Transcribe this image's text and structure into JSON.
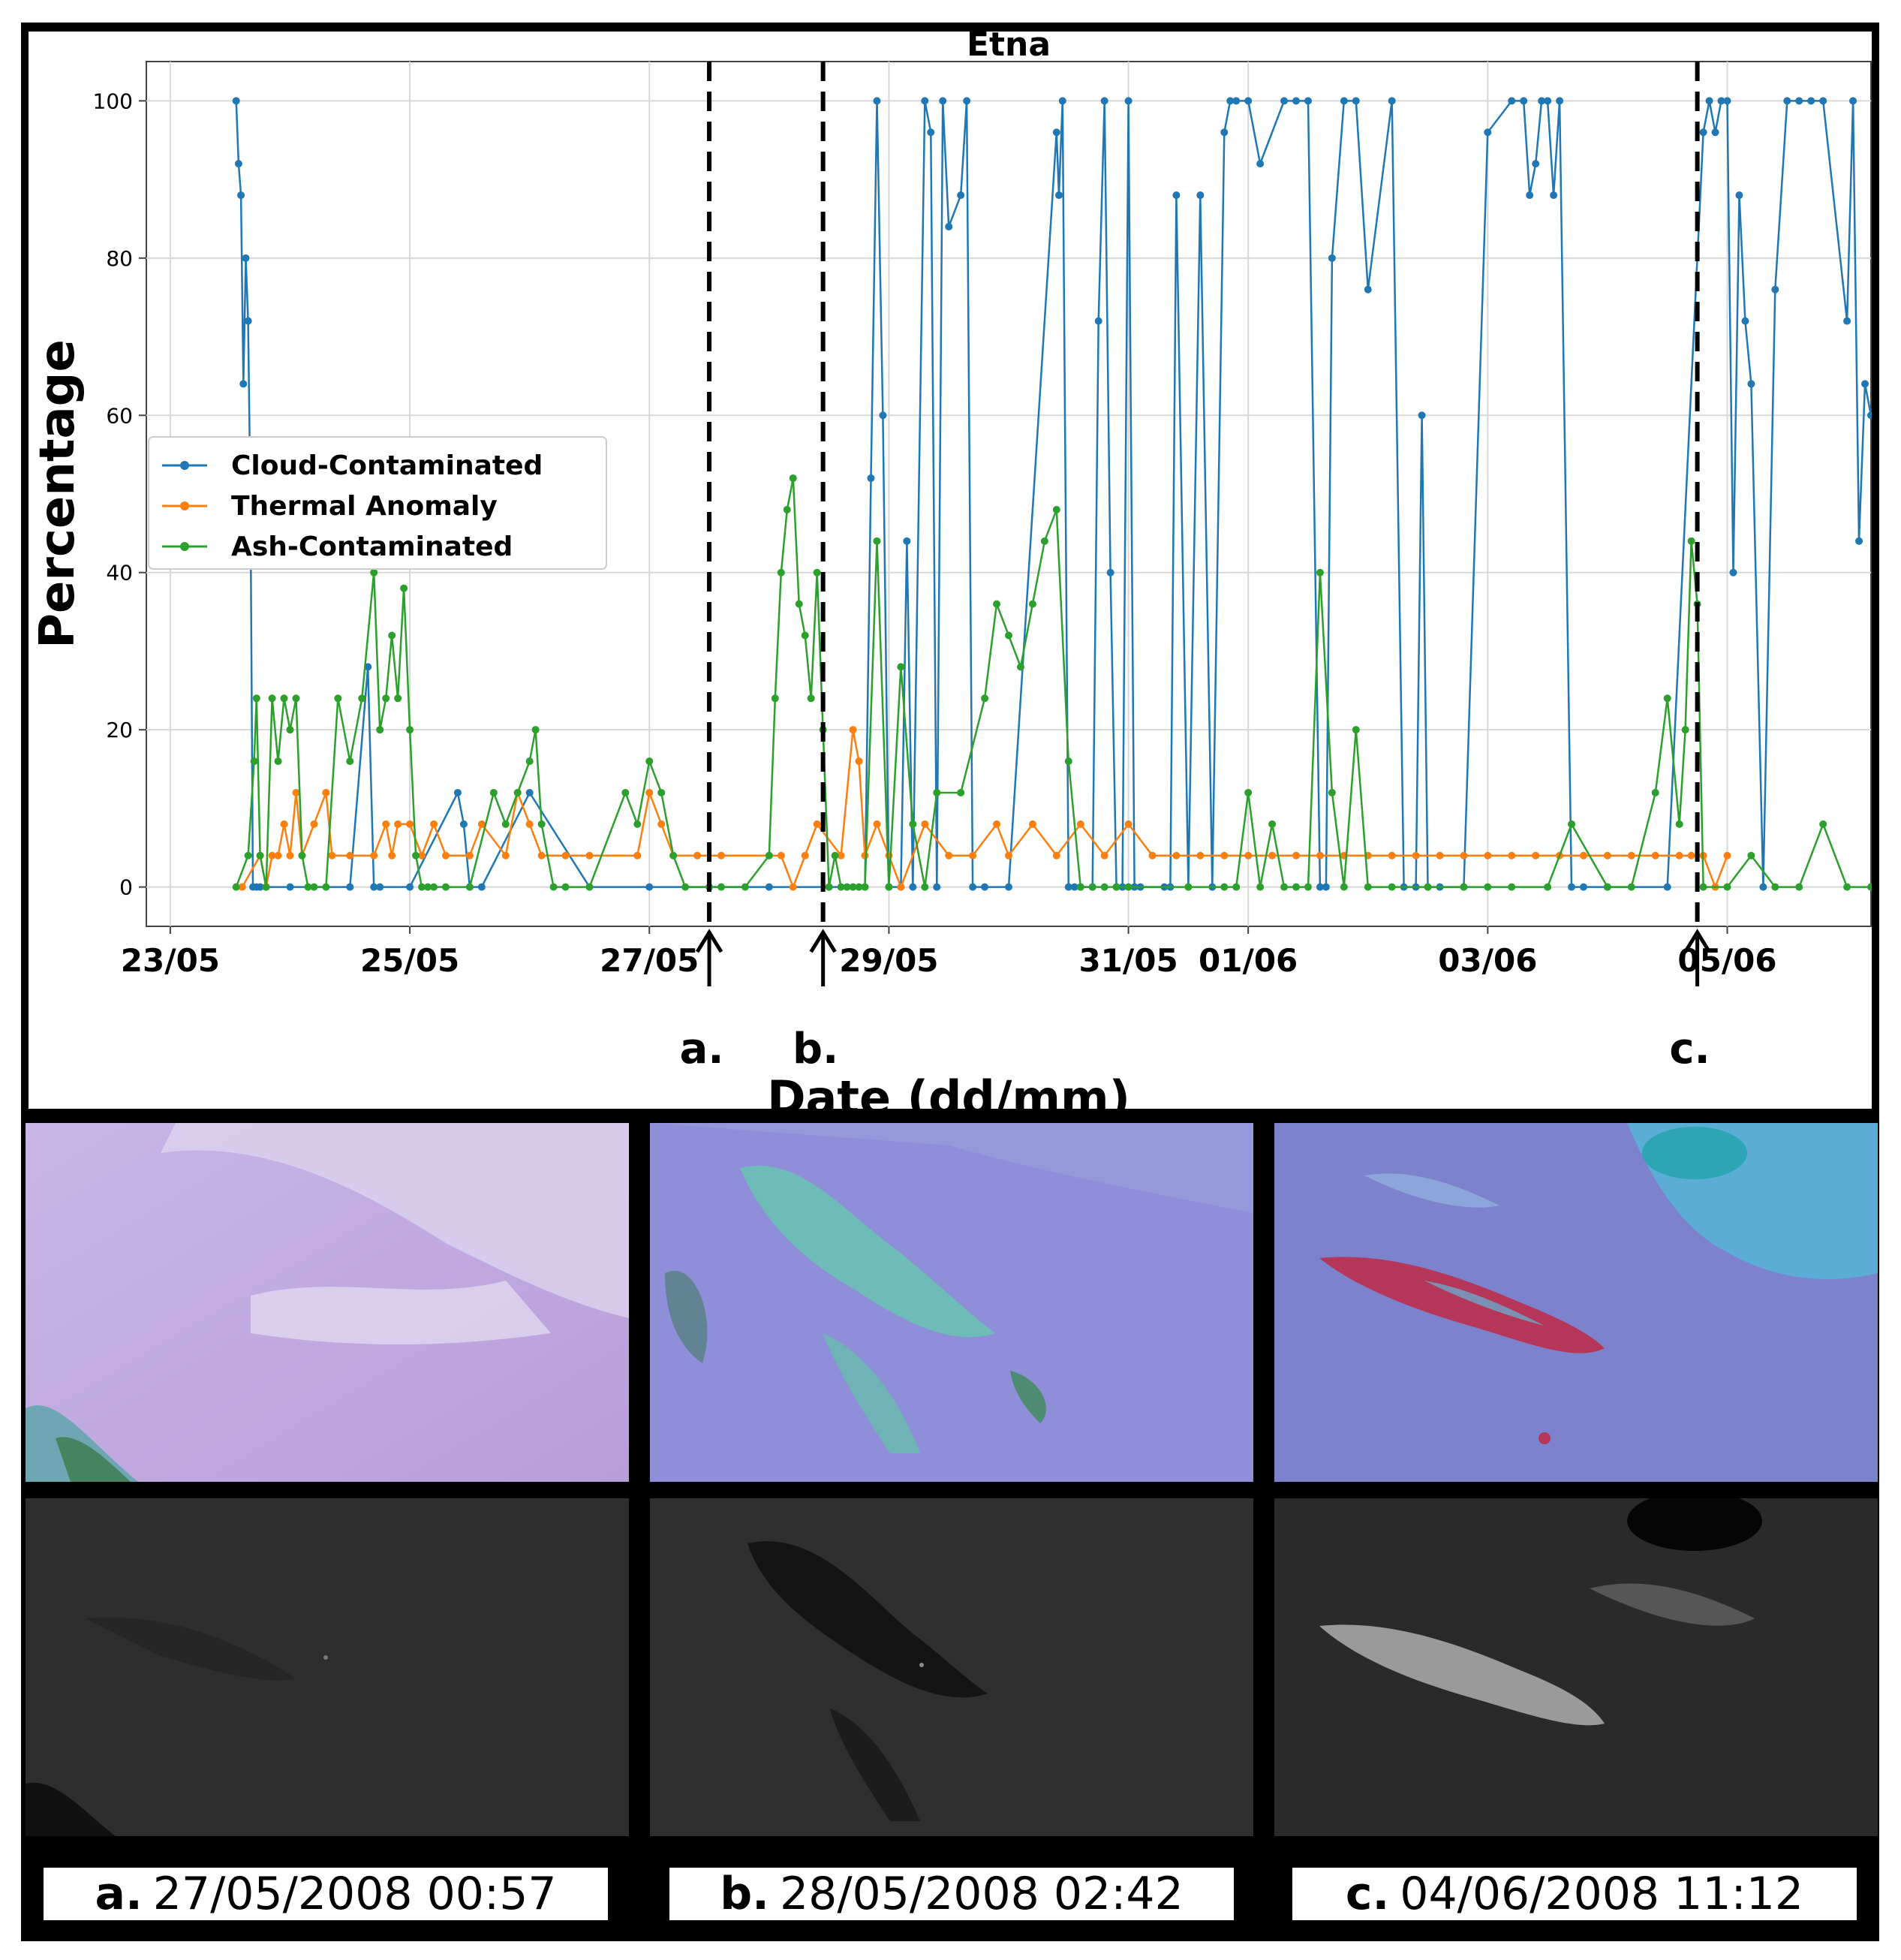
{
  "chart_data": {
    "type": "line",
    "title": "Etna",
    "xlabel": "Date (dd/mm)",
    "ylabel": "Percentage",
    "xlim_days": [
      -0.2,
      14.2
    ],
    "ylim": [
      -5,
      105
    ],
    "grid": true,
    "legend_position": "upper-left",
    "x_ticks": [
      {
        "day": 0,
        "label": "23/05"
      },
      {
        "day": 2,
        "label": "25/05"
      },
      {
        "day": 4,
        "label": "27/05"
      },
      {
        "day": 6,
        "label": "29/05"
      },
      {
        "day": 8,
        "label": "31/05"
      },
      {
        "day": 9,
        "label": "01/06"
      },
      {
        "day": 11,
        "label": "03/06"
      },
      {
        "day": 13,
        "label": "05/06"
      }
    ],
    "y_ticks": [
      0,
      20,
      40,
      60,
      80,
      100
    ],
    "events": [
      {
        "day": 4.5,
        "marker": "a."
      },
      {
        "day": 5.45,
        "marker": "b."
      },
      {
        "day": 12.75,
        "marker": "c."
      }
    ],
    "series": [
      {
        "name": "Cloud-Contaminated",
        "color": "#1f77b4",
        "x": [
          0.55,
          0.57,
          0.59,
          0.61,
          0.63,
          0.65,
          0.67,
          0.69,
          0.72,
          0.75,
          0.8,
          1.0,
          1.5,
          1.65,
          1.7,
          1.75,
          2.0,
          2.4,
          2.45,
          2.5,
          2.6,
          3.0,
          3.5,
          4.0,
          5.0,
          5.5,
          5.8,
          5.85,
          5.9,
          5.95,
          6.0,
          6.1,
          6.15,
          6.2,
          6.3,
          6.35,
          6.4,
          6.45,
          6.5,
          6.6,
          6.65,
          6.7,
          6.8,
          7.0,
          7.4,
          7.42,
          7.45,
          7.5,
          7.55,
          7.6,
          7.7,
          7.75,
          7.8,
          7.85,
          7.9,
          7.95,
          8.0,
          8.05,
          8.1,
          8.3,
          8.35,
          8.4,
          8.5,
          8.6,
          8.7,
          8.8,
          8.85,
          8.9,
          9.0,
          9.1,
          9.3,
          9.4,
          9.5,
          9.6,
          9.65,
          9.7,
          9.8,
          9.9,
          10.0,
          10.2,
          10.3,
          10.4,
          10.45,
          10.5,
          10.6,
          10.8,
          11.0,
          11.2,
          11.3,
          11.35,
          11.4,
          11.45,
          11.5,
          11.55,
          11.6,
          11.7,
          11.8,
          12.0,
          12.5,
          12.8,
          12.85,
          12.9,
          12.95,
          13.0,
          13.05,
          13.1,
          13.15,
          13.2,
          13.3,
          13.4,
          13.5,
          13.6,
          13.7,
          13.8,
          14.0,
          14.05,
          14.1,
          14.15,
          14.2
        ],
        "y": [
          100,
          92,
          88,
          64,
          80,
          72,
          48,
          0,
          0,
          0,
          0,
          0,
          0,
          28,
          0,
          0,
          0,
          12,
          8,
          0,
          0,
          12,
          0,
          0,
          0,
          0,
          0,
          52,
          100,
          60,
          0,
          0,
          44,
          0,
          100,
          96,
          0,
          100,
          84,
          88,
          100,
          0,
          0,
          0,
          96,
          88,
          100,
          0,
          0,
          0,
          0,
          72,
          100,
          40,
          0,
          0,
          100,
          0,
          0,
          0,
          0,
          88,
          0,
          88,
          0,
          96,
          100,
          100,
          100,
          92,
          100,
          100,
          100,
          0,
          0,
          80,
          100,
          100,
          76,
          100,
          0,
          0,
          60,
          0,
          0,
          0,
          96,
          100,
          100,
          88,
          92,
          100,
          100,
          88,
          100,
          0,
          0,
          0,
          0,
          96,
          100,
          96,
          100,
          100,
          40,
          88,
          72,
          64,
          0,
          76,
          100,
          100,
          100,
          100,
          72,
          100,
          44,
          64,
          60
        ]
      },
      {
        "name": "Thermal Anomaly",
        "color": "#ff7f0e",
        "x": [
          0.6,
          0.75,
          0.8,
          0.85,
          0.9,
          0.95,
          1.0,
          1.05,
          1.1,
          1.2,
          1.3,
          1.35,
          1.5,
          1.7,
          1.8,
          1.85,
          1.9,
          2.0,
          2.1,
          2.2,
          2.3,
          2.5,
          2.6,
          2.8,
          2.9,
          3.0,
          3.1,
          3.3,
          3.5,
          3.9,
          4.0,
          4.1,
          4.2,
          4.4,
          4.6,
          5.0,
          5.1,
          5.2,
          5.3,
          5.4,
          5.6,
          5.7,
          5.75,
          5.8,
          5.9,
          6.0,
          6.1,
          6.3,
          6.5,
          6.7,
          6.9,
          7.0,
          7.2,
          7.4,
          7.6,
          7.8,
          8.0,
          8.2,
          8.4,
          8.6,
          8.8,
          9.0,
          9.2,
          9.4,
          9.6,
          9.8,
          10.0,
          10.2,
          10.4,
          10.6,
          10.8,
          11.0,
          11.2,
          11.4,
          11.6,
          11.8,
          12.0,
          12.2,
          12.4,
          12.6,
          12.7,
          12.8,
          12.9,
          13.0
        ],
        "y": [
          0,
          4,
          0,
          4,
          4,
          8,
          4,
          12,
          4,
          8,
          12,
          4,
          4,
          4,
          8,
          4,
          8,
          8,
          4,
          8,
          4,
          4,
          8,
          4,
          12,
          8,
          4,
          4,
          4,
          4,
          12,
          8,
          4,
          4,
          4,
          4,
          4,
          0,
          4,
          8,
          4,
          20,
          16,
          4,
          8,
          4,
          0,
          8,
          4,
          4,
          8,
          4,
          8,
          4,
          8,
          4,
          8,
          4,
          4,
          4,
          4,
          4,
          4,
          4,
          4,
          4,
          4,
          4,
          4,
          4,
          4,
          4,
          4,
          4,
          4,
          4,
          4,
          4,
          4,
          4,
          4,
          4,
          0,
          4
        ]
      },
      {
        "name": "Ash-Contaminated",
        "color": "#2ca02c",
        "x": [
          0.55,
          0.65,
          0.7,
          0.72,
          0.75,
          0.8,
          0.85,
          0.9,
          0.95,
          1.0,
          1.05,
          1.1,
          1.15,
          1.2,
          1.3,
          1.4,
          1.5,
          1.6,
          1.7,
          1.75,
          1.8,
          1.85,
          1.9,
          1.95,
          2.0,
          2.05,
          2.1,
          2.15,
          2.2,
          2.3,
          2.5,
          2.7,
          2.8,
          2.9,
          3.0,
          3.05,
          3.1,
          3.2,
          3.3,
          3.5,
          3.8,
          3.9,
          4.0,
          4.1,
          4.2,
          4.3,
          4.5,
          4.6,
          4.8,
          5.0,
          5.05,
          5.1,
          5.15,
          5.2,
          5.25,
          5.3,
          5.35,
          5.4,
          5.45,
          5.5,
          5.55,
          5.6,
          5.65,
          5.7,
          5.75,
          5.8,
          5.9,
          6.0,
          6.1,
          6.2,
          6.3,
          6.4,
          6.6,
          6.8,
          6.9,
          7.0,
          7.1,
          7.2,
          7.3,
          7.4,
          7.5,
          7.6,
          7.7,
          7.8,
          7.9,
          8.0,
          8.5,
          8.8,
          8.9,
          9.0,
          9.1,
          9.2,
          9.3,
          9.4,
          9.5,
          9.6,
          9.7,
          9.8,
          9.9,
          10.0,
          10.2,
          10.5,
          10.8,
          11.0,
          11.2,
          11.5,
          11.7,
          12.0,
          12.2,
          12.4,
          12.5,
          12.6,
          12.65,
          12.7,
          12.75,
          12.8,
          13.0,
          13.2,
          13.4,
          13.6,
          13.8,
          14.0,
          14.2
        ],
        "y": [
          0,
          4,
          16,
          24,
          4,
          0,
          24,
          16,
          24,
          20,
          24,
          4,
          0,
          0,
          0,
          24,
          16,
          24,
          40,
          20,
          24,
          32,
          24,
          38,
          20,
          4,
          0,
          0,
          0,
          0,
          0,
          12,
          8,
          12,
          16,
          20,
          8,
          0,
          0,
          0,
          12,
          8,
          16,
          12,
          4,
          0,
          0,
          0,
          0,
          4,
          24,
          40,
          48,
          52,
          36,
          32,
          24,
          40,
          20,
          0,
          4,
          0,
          0,
          0,
          0,
          0,
          44,
          0,
          28,
          8,
          0,
          12,
          12,
          24,
          36,
          32,
          28,
          36,
          44,
          48,
          16,
          0,
          0,
          0,
          0,
          0,
          0,
          0,
          0,
          12,
          0,
          8,
          0,
          0,
          0,
          40,
          12,
          0,
          20,
          0,
          0,
          0,
          0,
          0,
          0,
          0,
          8,
          0,
          0,
          12,
          24,
          8,
          20,
          44,
          36,
          0,
          0,
          4,
          0,
          0,
          8,
          0,
          0
        ]
      }
    ]
  },
  "images": [
    {
      "marker": "a.",
      "timestamp": "27/05/2008 00:57"
    },
    {
      "marker": "b.",
      "timestamp": "28/05/2008 02:42"
    },
    {
      "marker": "c.",
      "timestamp": "04/06/2008 11:12"
    }
  ]
}
